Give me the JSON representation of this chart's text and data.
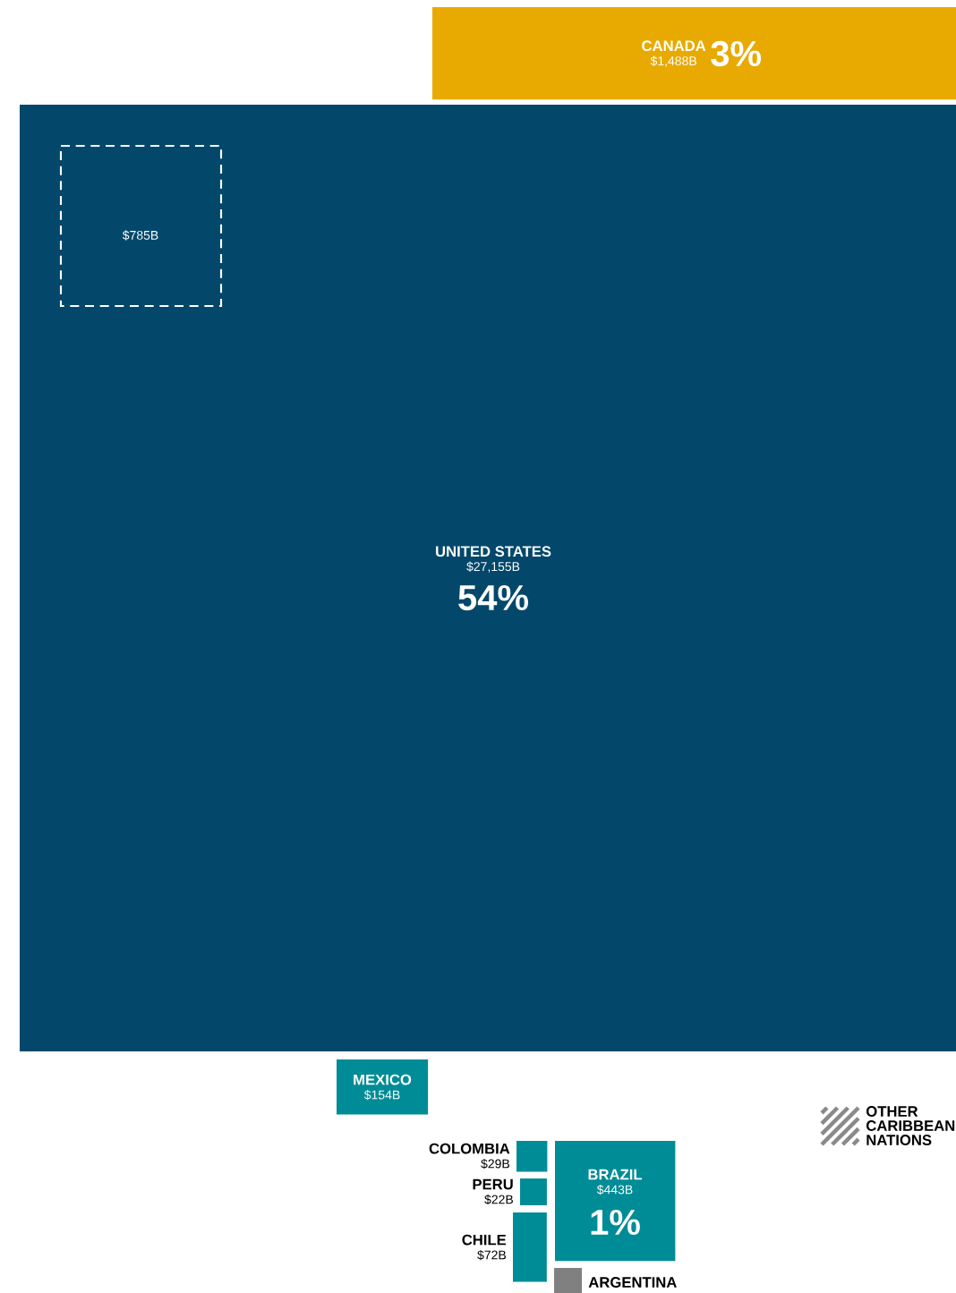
{
  "chart_data": {
    "type": "other",
    "categories": [
      "UNITED STATES",
      "CANADA",
      null,
      "MEXICO",
      "COLOMBIA",
      "PERU",
      "CHILE",
      "BRAZIL",
      "ARGENTINA",
      "OTHER CARIBBEAN NATIONS"
    ],
    "values": [
      27155,
      1488,
      null,
      154,
      29,
      22,
      72,
      443,
      null,
      null
    ],
    "value_labels": [
      "$27,155B",
      "$1,488B",
      null,
      "$154B",
      "$29B",
      "$22B",
      "$72B",
      "$443B",
      null,
      null
    ],
    "colors": [
      "#03486a",
      "#e8aa00",
      "#ffffff",
      "#008c96",
      "#008c96",
      "#008c96",
      "#008c96",
      "#008c96",
      "#808080",
      "#8a8a8a"
    ],
    "annotations": [
      "54%",
      "3%",
      "$785B",
      "1%"
    ]
  }
}
